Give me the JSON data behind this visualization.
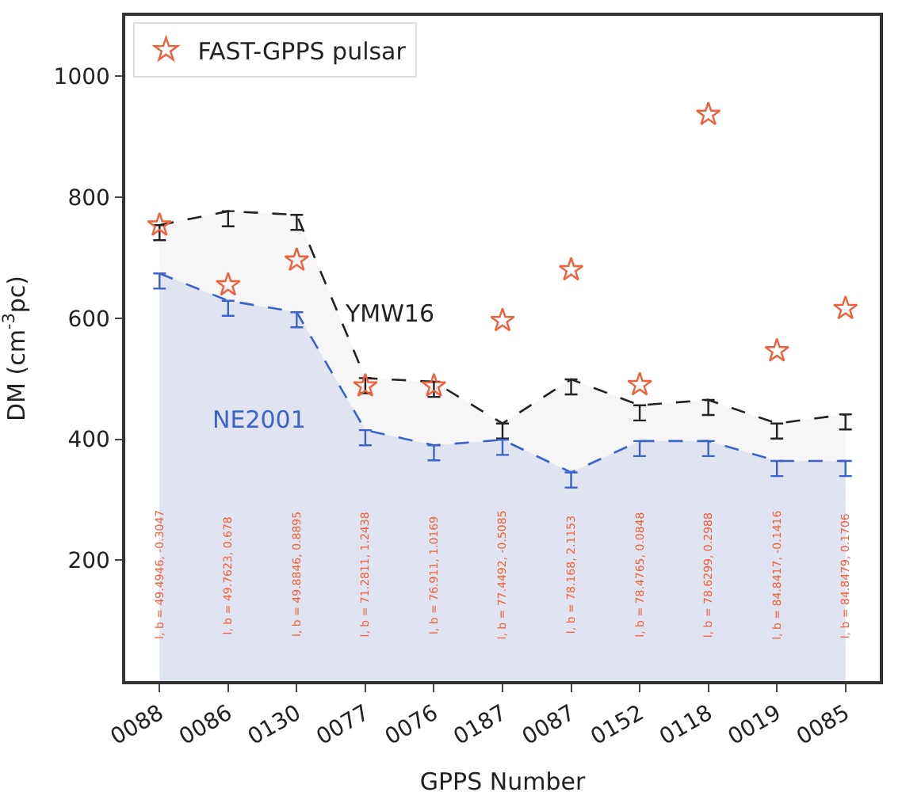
{
  "chart_data": {
    "type": "area",
    "categories": [
      "0088",
      "0086",
      "0130",
      "0077",
      "0076",
      "0187",
      "0087",
      "0152",
      "0118",
      "0019",
      "0085"
    ],
    "xlabel": "GPPS Number",
    "ylabel": "DM (cm$^{-3}$pc)",
    "ylim": [
      0,
      1100
    ],
    "yticks": [
      200,
      400,
      600,
      800,
      1000
    ],
    "legend": "top left",
    "line_style": "dashed",
    "series": [
      {
        "name": "YMW16",
        "color": "#222222",
        "values": [
          754,
          777,
          771,
          501,
          495,
          426,
          499,
          456,
          465,
          426,
          441
        ],
        "errors": [
          [
            729,
            754
          ],
          [
            752,
            777
          ],
          [
            746,
            771
          ],
          [
            476,
            501
          ],
          [
            470,
            495
          ],
          [
            401,
            426
          ],
          [
            474,
            499
          ],
          [
            431,
            456
          ],
          [
            440,
            465
          ],
          [
            401,
            426
          ],
          [
            416,
            441
          ]
        ]
      },
      {
        "name": "NE2001",
        "color": "#3a62c8",
        "values": [
          674,
          629,
          610,
          415,
          390,
          399,
          345,
          397,
          397,
          364,
          364
        ],
        "errors": [
          [
            649,
            674
          ],
          [
            604,
            629
          ],
          [
            585,
            610
          ],
          [
            390,
            415
          ],
          [
            365,
            390
          ],
          [
            374,
            399
          ],
          [
            320,
            345
          ],
          [
            372,
            397
          ],
          [
            372,
            397
          ],
          [
            339,
            364
          ],
          [
            339,
            364
          ]
        ]
      },
      {
        "name": "FAST-GPPS pulsar",
        "type": "scatter",
        "marker": "star",
        "color": "#f0603c",
        "values": [
          754,
          655,
          696,
          488,
          488,
          596,
          680,
          490,
          937,
          546,
          616
        ]
      }
    ],
    "annotations": [
      "l, b = 49.4946, -0.3047",
      "l, b = 49.7623, 0.678",
      "l, b = 49.8846, 0.8895",
      "l, b = 71.2811, 1.2438",
      "l, b = 76.911, 1.0169",
      "l, b = 77.4492, -0.5085",
      "l, b = 78.168, 2.1153",
      "l, b = 78.4765, 0.0848",
      "l, b = 78.6299, 0.2988",
      "l, b = 84.8417, -0.1416",
      "l, b = 84.8479, 0.1706"
    ]
  }
}
